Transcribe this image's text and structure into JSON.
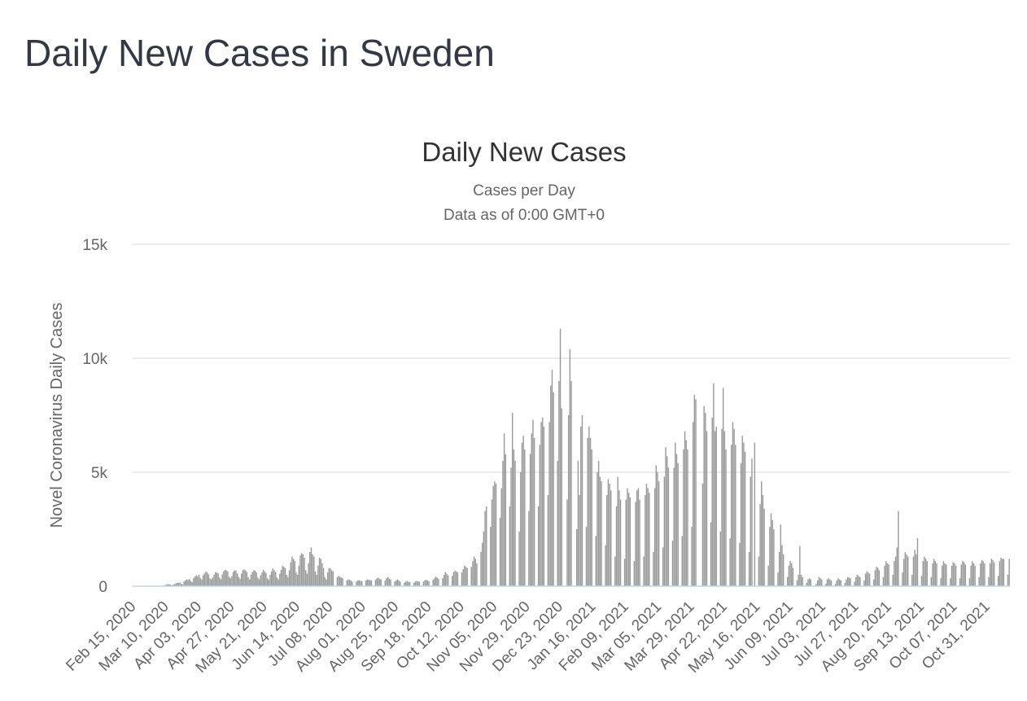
{
  "page_title": "Daily New Cases in Sweden",
  "chart_data": {
    "type": "bar",
    "title": "Daily New Cases",
    "subtitle": [
      "Cases per Day",
      "Data as of 0:00 GMT+0"
    ],
    "y_label": "Novel Coronavirus Daily Cases",
    "color": "#999999",
    "grid": true,
    "ylim": [
      0,
      15000
    ],
    "yticks": [
      0,
      {
        "value": 5000,
        "label": "5k"
      },
      {
        "value": 10000,
        "label": "10k"
      },
      {
        "value": 15000,
        "label": "15k"
      }
    ],
    "categories": [
      "Feb 15, 2020",
      null,
      null,
      null,
      null,
      null,
      null,
      null,
      null,
      null,
      null,
      null,
      null,
      null,
      null,
      null,
      null,
      null,
      null,
      null,
      null,
      null,
      null,
      null,
      "Mar 10, 2020",
      null,
      null,
      null,
      null,
      null,
      null,
      null,
      null,
      null,
      null,
      null,
      null,
      null,
      null,
      null,
      null,
      null,
      null,
      null,
      null,
      null,
      null,
      null,
      "Apr 03, 2020",
      null,
      null,
      null,
      null,
      null,
      null,
      null,
      null,
      null,
      null,
      null,
      null,
      null,
      null,
      null,
      null,
      null,
      null,
      null,
      null,
      null,
      null,
      null,
      "Apr 27, 2020",
      null,
      null,
      null,
      null,
      null,
      null,
      null,
      null,
      null,
      null,
      null,
      null,
      null,
      null,
      null,
      null,
      null,
      null,
      null,
      null,
      null,
      null,
      null,
      "May 21, 2020",
      null,
      null,
      null,
      null,
      null,
      null,
      null,
      null,
      null,
      null,
      null,
      null,
      null,
      null,
      null,
      null,
      null,
      null,
      null,
      null,
      null,
      null,
      null,
      "Jun 14, 2020",
      null,
      null,
      null,
      null,
      null,
      null,
      null,
      null,
      null,
      null,
      null,
      null,
      null,
      null,
      null,
      null,
      null,
      null,
      null,
      null,
      null,
      null,
      null,
      "Jul 08, 2020",
      null,
      null,
      null,
      null,
      null,
      null,
      null,
      null,
      null,
      null,
      null,
      null,
      null,
      null,
      null,
      null,
      null,
      null,
      null,
      null,
      null,
      null,
      null,
      "Aug 01, 2020",
      null,
      null,
      null,
      null,
      null,
      null,
      null,
      null,
      null,
      null,
      null,
      null,
      null,
      null,
      null,
      null,
      null,
      null,
      null,
      null,
      null,
      null,
      null,
      "Aug 25, 2020",
      null,
      null,
      null,
      null,
      null,
      null,
      null,
      null,
      null,
      null,
      null,
      null,
      null,
      null,
      null,
      null,
      null,
      null,
      null,
      null,
      null,
      null,
      null,
      "Sep 18, 2020",
      null,
      null,
      null,
      null,
      null,
      null,
      null,
      null,
      null,
      null,
      null,
      null,
      null,
      null,
      null,
      null,
      null,
      null,
      null,
      null,
      null,
      null,
      null,
      "Oct 12, 2020",
      null,
      null,
      null,
      null,
      null,
      null,
      null,
      null,
      null,
      null,
      null,
      null,
      null,
      null,
      null,
      null,
      null,
      null,
      null,
      null,
      null,
      null,
      null,
      "Nov 05, 2020",
      null,
      null,
      null,
      null,
      null,
      null,
      null,
      null,
      null,
      null,
      null,
      null,
      null,
      null,
      null,
      null,
      null,
      null,
      null,
      null,
      null,
      null,
      null,
      "Nov 29, 2020",
      null,
      null,
      null,
      null,
      null,
      null,
      null,
      null,
      null,
      null,
      null,
      null,
      null,
      null,
      null,
      null,
      null,
      null,
      null,
      null,
      null,
      null,
      null,
      "Dec 23, 2020",
      null,
      null,
      null,
      null,
      null,
      null,
      null,
      null,
      null,
      null,
      null,
      null,
      null,
      null,
      null,
      null,
      null,
      null,
      null,
      null,
      null,
      null,
      null,
      "Jan 16, 2021",
      null,
      null,
      null,
      null,
      null,
      null,
      null,
      null,
      null,
      null,
      null,
      null,
      null,
      null,
      null,
      null,
      null,
      null,
      null,
      null,
      null,
      null,
      null,
      "Feb 09, 2021",
      null,
      null,
      null,
      null,
      null,
      null,
      null,
      null,
      null,
      null,
      null,
      null,
      null,
      null,
      null,
      null,
      null,
      null,
      null,
      null,
      null,
      null,
      null,
      "Mar 05, 2021",
      null,
      null,
      null,
      null,
      null,
      null,
      null,
      null,
      null,
      null,
      null,
      null,
      null,
      null,
      null,
      null,
      null,
      null,
      null,
      null,
      null,
      null,
      null,
      "Mar 29, 2021",
      null,
      null,
      null,
      null,
      null,
      null,
      null,
      null,
      null,
      null,
      null,
      null,
      null,
      null,
      null,
      null,
      null,
      null,
      null,
      null,
      null,
      null,
      null,
      "Apr 22, 2021",
      null,
      null,
      null,
      null,
      null,
      null,
      null,
      null,
      null,
      null,
      null,
      null,
      null,
      null,
      null,
      null,
      null,
      null,
      null,
      null,
      null,
      null,
      null,
      "May 16, 2021",
      null,
      null,
      null,
      null,
      null,
      null,
      null,
      null,
      null,
      null,
      null,
      null,
      null,
      null,
      null,
      null,
      null,
      null,
      null,
      null,
      null,
      null,
      null,
      "Jun 09, 2021",
      null,
      null,
      null,
      null,
      null,
      null,
      null,
      null,
      null,
      null,
      null,
      null,
      null,
      null,
      null,
      null,
      null,
      null,
      null,
      null,
      null,
      null,
      null,
      "Jul 03, 2021",
      null,
      null,
      null,
      null,
      null,
      null,
      null,
      null,
      null,
      null,
      null,
      null,
      null,
      null,
      null,
      null,
      null,
      null,
      null,
      null,
      null,
      null,
      null,
      "Jul 27, 2021",
      null,
      null,
      null,
      null,
      null,
      null,
      null,
      null,
      null,
      null,
      null,
      null,
      null,
      null,
      null,
      null,
      null,
      null,
      null,
      null,
      null,
      null,
      null,
      "Aug 20, 2021",
      null,
      null,
      null,
      null,
      null,
      null,
      null,
      null,
      null,
      null,
      null,
      null,
      null,
      null,
      null,
      null,
      null,
      null,
      null,
      null,
      null,
      null,
      null,
      "Sep 13, 2021",
      null,
      null,
      null,
      null,
      null,
      null,
      null,
      null,
      null,
      null,
      null,
      null,
      null,
      null,
      null,
      null,
      null,
      null,
      null,
      null,
      null,
      null,
      null,
      "Oct 07, 2021",
      null,
      null,
      null,
      null,
      null,
      null,
      null,
      null,
      null,
      null,
      null,
      null,
      null,
      null,
      null,
      null,
      null,
      null,
      null,
      null,
      null,
      null,
      null,
      "Oct 31, 2021",
      null,
      null,
      null,
      null,
      null,
      null,
      null,
      null,
      null,
      null,
      null,
      null,
      null,
      null,
      null,
      null
    ],
    "values": [
      0,
      0,
      0,
      0,
      0,
      0,
      1,
      0,
      0,
      0,
      0,
      4,
      1,
      1,
      0,
      0,
      1,
      13,
      15,
      20,
      10,
      2,
      24,
      45,
      60,
      96,
      85,
      72,
      50,
      60,
      90,
      120,
      140,
      150,
      160,
      110,
      80,
      200,
      250,
      300,
      280,
      310,
      230,
      180,
      350,
      420,
      480,
      430,
      500,
      360,
      300,
      480,
      560,
      650,
      600,
      520,
      350,
      300,
      380,
      500,
      620,
      600,
      560,
      380,
      300,
      520,
      650,
      720,
      700,
      650,
      420,
      350,
      450,
      620,
      700,
      680,
      560,
      400,
      330,
      550,
      700,
      740,
      690,
      620,
      400,
      300,
      500,
      620,
      700,
      680,
      600,
      380,
      300,
      480,
      600,
      720,
      650,
      580,
      350,
      280,
      500,
      650,
      780,
      700,
      620,
      380,
      300,
      550,
      720,
      900,
      850,
      800,
      500,
      400,
      700,
      1050,
      1300,
      1200,
      1100,
      600,
      500,
      900,
      1350,
      1450,
      1400,
      1250,
      700,
      550,
      1000,
      1500,
      1700,
      1400,
      1300,
      650,
      500,
      900,
      1250,
      1200,
      1000,
      800,
      400,
      300,
      600,
      800,
      780,
      700,
      650,
      0,
      0,
      400,
      450,
      420,
      380,
      350,
      0,
      0,
      250,
      300,
      280,
      250,
      200,
      0,
      0,
      200,
      250,
      260,
      230,
      220,
      0,
      0,
      250,
      300,
      280,
      270,
      250,
      0,
      0,
      280,
      350,
      380,
      320,
      300,
      0,
      0,
      250,
      350,
      400,
      330,
      300,
      0,
      0,
      200,
      250,
      300,
      250,
      200,
      0,
      0,
      150,
      200,
      230,
      200,
      180,
      0,
      0,
      150,
      200,
      230,
      220,
      200,
      0,
      0,
      200,
      260,
      280,
      250,
      220,
      0,
      0,
      280,
      350,
      420,
      380,
      320,
      0,
      0,
      350,
      500,
      620,
      550,
      480,
      0,
      0,
      450,
      620,
      680,
      650,
      600,
      0,
      0,
      600,
      750,
      900,
      850,
      800,
      0,
      0,
      850,
      1100,
      1300,
      1200,
      1000,
      0,
      0,
      1500,
      1900,
      2400,
      3300,
      3500,
      0,
      0,
      2600,
      3800,
      4400,
      4600,
      4500,
      0,
      0,
      3000,
      4300,
      5500,
      6700,
      5800,
      0,
      0,
      3500,
      5200,
      7600,
      6000,
      5500,
      0,
      0,
      2400,
      5000,
      6300,
      6600,
      6000,
      0,
      0,
      3300,
      5800,
      6700,
      7300,
      6500,
      0,
      0,
      3500,
      6200,
      7200,
      7400,
      7000,
      0,
      0,
      4000,
      7200,
      8800,
      9500,
      8500,
      0,
      0,
      5500,
      9000,
      11300,
      7800,
      0,
      0,
      0,
      3800,
      7500,
      10400,
      9000,
      0,
      0,
      0,
      2500,
      5500,
      4000,
      7000,
      7500,
      0,
      0,
      2600,
      6500,
      7000,
      6500,
      6000,
      0,
      0,
      2200,
      5000,
      5500,
      4800,
      4600,
      0,
      0,
      1800,
      4000,
      4700,
      4500,
      4200,
      0,
      0,
      1300,
      3500,
      4800,
      4200,
      3800,
      0,
      0,
      1200,
      3800,
      4300,
      4100,
      3900,
      0,
      0,
      1100,
      3700,
      4200,
      4300,
      3800,
      0,
      0,
      1300,
      4000,
      4500,
      4300,
      4100,
      0,
      0,
      1500,
      4300,
      5300,
      5000,
      4600,
      0,
      0,
      1700,
      4800,
      6100,
      5700,
      5200,
      0,
      0,
      2000,
      5200,
      6300,
      5800,
      5400,
      0,
      0,
      2200,
      6000,
      6800,
      6400,
      6000,
      0,
      0,
      2600,
      7200,
      8400,
      8200,
      0,
      0,
      0,
      0,
      4500,
      7900,
      7600,
      6800,
      0,
      0,
      2800,
      7400,
      8900,
      6800,
      7000,
      0,
      0,
      2400,
      6900,
      8700,
      6800,
      6000,
      0,
      0,
      2100,
      6200,
      7200,
      6900,
      6200,
      0,
      0,
      1900,
      5400,
      6600,
      6300,
      5900,
      0,
      0,
      1500,
      4800,
      5600,
      0,
      6300,
      0,
      0,
      1300,
      3600,
      4600,
      4000,
      3400,
      0,
      0,
      900,
      2600,
      3200,
      2900,
      2500,
      0,
      0,
      600,
      1500,
      2700,
      1800,
      1400,
      0,
      0,
      400,
      900,
      1100,
      1000,
      800,
      0,
      0,
      250,
      500,
      1750,
      500,
      400,
      0,
      0,
      150,
      300,
      350,
      300,
      0,
      0,
      0,
      100,
      250,
      400,
      350,
      300,
      0,
      0,
      100,
      300,
      350,
      300,
      250,
      0,
      0,
      100,
      250,
      350,
      300,
      250,
      0,
      0,
      150,
      300,
      400,
      380,
      350,
      0,
      0,
      200,
      400,
      500,
      450,
      400,
      0,
      0,
      250,
      550,
      650,
      600,
      550,
      0,
      0,
      300,
      700,
      850,
      800,
      700,
      0,
      0,
      400,
      900,
      1100,
      1000,
      950,
      0,
      0,
      500,
      1100,
      1300,
      1700,
      3300,
      0,
      0,
      600,
      1200,
      1500,
      1400,
      1300,
      0,
      0,
      500,
      1300,
      1600,
      1400,
      2100,
      0,
      0,
      450,
      1100,
      1300,
      1200,
      1100,
      0,
      0,
      400,
      1000,
      1200,
      1100,
      1000,
      0,
      0,
      350,
      900,
      1100,
      1000,
      950,
      0,
      0,
      350,
      900,
      1050,
      1000,
      900,
      0,
      0,
      350,
      950,
      1100,
      1050,
      950,
      0,
      0,
      350,
      900,
      1100,
      1000,
      900,
      0,
      0,
      400,
      1000,
      1150,
      1100,
      1000,
      0,
      0,
      400,
      1000,
      1200,
      1150,
      1050,
      0,
      0,
      450,
      1100,
      1250,
      1200,
      1200,
      0,
      0,
      500,
      1200
    ]
  }
}
